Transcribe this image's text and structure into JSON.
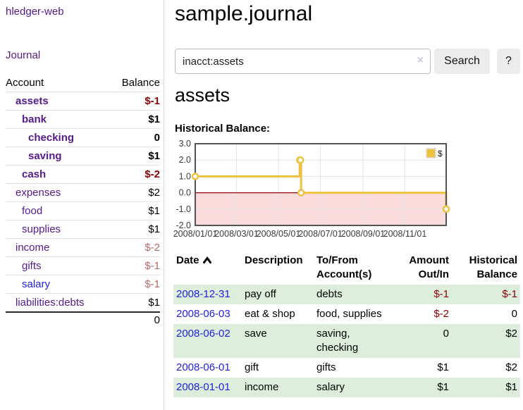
{
  "colors": {
    "accent_purple": "#551a8b",
    "link_blue": "#2222dd",
    "negative_strong": "#8b0000",
    "negative_soft": "#b36a6a",
    "row_green": "#ddeedd",
    "series_gold": "#EDC240"
  },
  "app": {
    "brand": "hledger-web",
    "nav_journal": "Journal"
  },
  "sidebar": {
    "accounts_header": {
      "account": "Account",
      "balance": "Balance"
    },
    "accounts": [
      {
        "name": "assets",
        "balance": "$-1",
        "level": 1,
        "bold": true,
        "negative": "strong"
      },
      {
        "name": "bank",
        "balance": "$1",
        "level": 2,
        "bold": true,
        "negative": null
      },
      {
        "name": "checking",
        "balance": "0",
        "level": 3,
        "bold": true,
        "negative": null
      },
      {
        "name": "saving",
        "balance": "$1",
        "level": 3,
        "bold": true,
        "negative": null
      },
      {
        "name": "cash",
        "balance": "$-2",
        "level": 2,
        "bold": true,
        "negative": "strong"
      },
      {
        "name": "expenses",
        "balance": "$2",
        "level": 1,
        "bold": false,
        "negative": null
      },
      {
        "name": "food",
        "balance": "$1",
        "level": 2,
        "bold": false,
        "negative": null
      },
      {
        "name": "supplies",
        "balance": "$1",
        "level": 2,
        "bold": false,
        "negative": null
      },
      {
        "name": "income",
        "balance": "$-2",
        "level": 1,
        "bold": false,
        "negative": "soft"
      },
      {
        "name": "gifts",
        "balance": "$-1",
        "level": 2,
        "bold": false,
        "negative": "soft"
      },
      {
        "name": "salary",
        "balance": "$-1",
        "level": 2,
        "bold": false,
        "negative": "soft",
        "link_color": "blue"
      },
      {
        "name": "liabilities:debts",
        "balance": "$1",
        "level": 1,
        "bold": false,
        "negative": null
      }
    ],
    "total": "0"
  },
  "header": {
    "title": "sample.journal"
  },
  "search": {
    "value": "inacct:assets",
    "clear_icon": "×",
    "button": "Search",
    "help_button": "?"
  },
  "register": {
    "heading": "assets",
    "chart_label": "Historical Balance:",
    "columns": {
      "date": "Date",
      "description": "Description",
      "accounts": "To/From Account(s)",
      "amount": "Amount Out/In",
      "balance": "Historical Balance"
    },
    "rows": [
      {
        "date": "2008-12-31",
        "description": "pay off",
        "accounts": "debts",
        "amount": "$-1",
        "balance": "$-1"
      },
      {
        "date": "2008-06-03",
        "description": "eat & shop",
        "accounts": "food, supplies",
        "amount": "$-2",
        "balance": "0"
      },
      {
        "date": "2008-06-02",
        "description": "save",
        "accounts": "saving, checking",
        "amount": "0",
        "balance": "$2"
      },
      {
        "date": "2008-06-01",
        "description": "gift",
        "accounts": "gifts",
        "amount": "$1",
        "balance": "$2"
      },
      {
        "date": "2008-01-01",
        "description": "income",
        "accounts": "salary",
        "amount": "$1",
        "balance": "$1"
      }
    ]
  },
  "chart_data": {
    "type": "line",
    "title": "Historical Balance",
    "step": true,
    "grid": true,
    "series": [
      {
        "name": "$",
        "color": "#EDC240",
        "points": [
          [
            "2008-01-01",
            1
          ],
          [
            "2008-06-01",
            2
          ],
          [
            "2008-06-02",
            2
          ],
          [
            "2008-06-03",
            0
          ],
          [
            "2008-12-31",
            -1
          ]
        ]
      }
    ],
    "x_range": [
      "2008-01-01",
      "2008-12-31"
    ],
    "y_range": [
      -2,
      3
    ],
    "y_ticks": [
      3.0,
      2.0,
      1.0,
      0.0,
      -1.0,
      -2.0
    ],
    "y_tick_labels": [
      "3.0",
      "2.0",
      "1.0",
      "0.0",
      "-1.0",
      "-2.0"
    ],
    "x_ticks": [
      "2008-01-01",
      "2008-03-01",
      "2008-05-01",
      "2008-07-01",
      "2008-09-01",
      "2008-11-01"
    ],
    "x_tick_labels": [
      "2008/01/01",
      "2008/03/01",
      "2008/05/01",
      "2008/07/01",
      "2008/09/01",
      "2008/11/01"
    ],
    "negative_region_color": "#fadcdc",
    "zero_line_color": "#8b0000",
    "legend": {
      "label": "$",
      "position": "top-right"
    }
  }
}
